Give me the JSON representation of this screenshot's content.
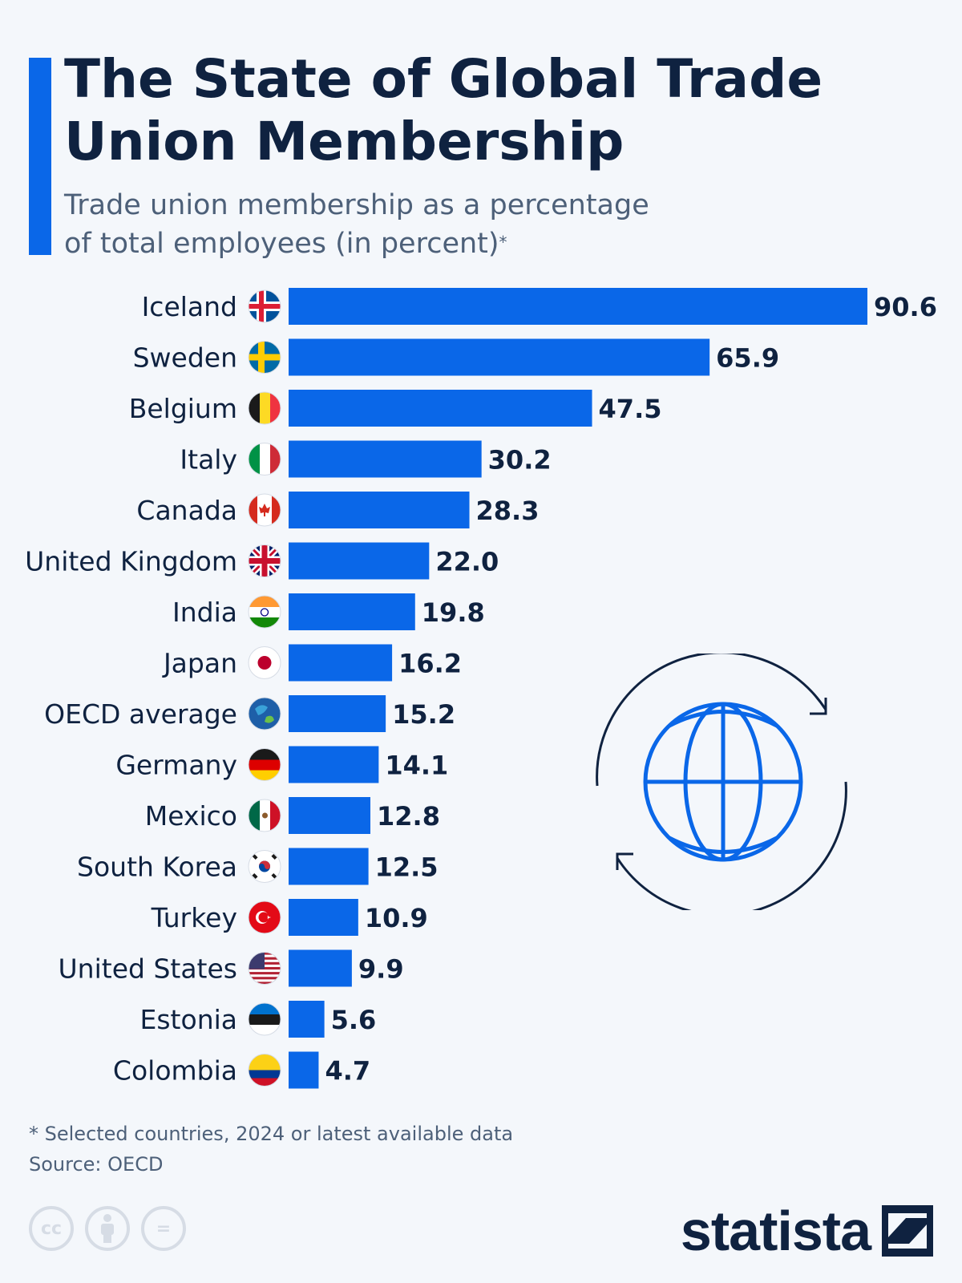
{
  "header": {
    "title": "The State of Global Trade Union Membership",
    "subtitle_line1": "Trade union membership as a percentage",
    "subtitle_line2": "of total employees (in percent)",
    "subtitle_mark": "*"
  },
  "colors": {
    "accent": "#0a67e8",
    "bar": "#0a67e8",
    "text_dark": "#0f2240",
    "text_muted": "#4d6079",
    "background": "#f4f7fb"
  },
  "chart_data": {
    "type": "bar",
    "orientation": "horizontal",
    "title": "The State of Global Trade Union Membership",
    "subtitle": "Trade union membership as a percentage of total employees (in percent)*",
    "unit": "percent",
    "xlim": [
      0,
      90.6
    ],
    "categories": [
      "Iceland",
      "Sweden",
      "Belgium",
      "Italy",
      "Canada",
      "United Kingdom",
      "India",
      "Japan",
      "OECD average",
      "Germany",
      "Mexico",
      "South Korea",
      "Turkey",
      "United States",
      "Estonia",
      "Colombia"
    ],
    "values": [
      90.6,
      65.9,
      47.5,
      30.2,
      28.3,
      22.0,
      19.8,
      16.2,
      15.2,
      14.1,
      12.8,
      12.5,
      10.9,
      9.9,
      5.6,
      4.7
    ],
    "value_labels": [
      "90.6",
      "65.9",
      "47.5",
      "30.2",
      "28.3",
      "22.0",
      "19.8",
      "16.2",
      "15.2",
      "14.1",
      "12.8",
      "12.5",
      "10.9",
      "9.9",
      "5.6",
      "4.7"
    ],
    "flags": [
      "iceland-flag-icon",
      "sweden-flag-icon",
      "belgium-flag-icon",
      "italy-flag-icon",
      "canada-flag-icon",
      "uk-flag-icon",
      "india-flag-icon",
      "japan-flag-icon",
      "oecd-logo-icon",
      "germany-flag-icon",
      "mexico-flag-icon",
      "south-korea-flag-icon",
      "turkey-flag-icon",
      "usa-flag-icon",
      "estonia-flag-icon",
      "colombia-flag-icon"
    ]
  },
  "footer": {
    "note": "* Selected countries, 2024 or latest available data",
    "source": "Source: OECD",
    "license_icons": [
      "cc-icon",
      "attribution-icon",
      "no-derivatives-icon"
    ],
    "license_cc": "cc",
    "license_nd": "="
  },
  "brand": {
    "name": "statista",
    "logo_icon": "statista-logo-icon"
  },
  "decoration": {
    "icon": "globe-refresh-icon"
  }
}
